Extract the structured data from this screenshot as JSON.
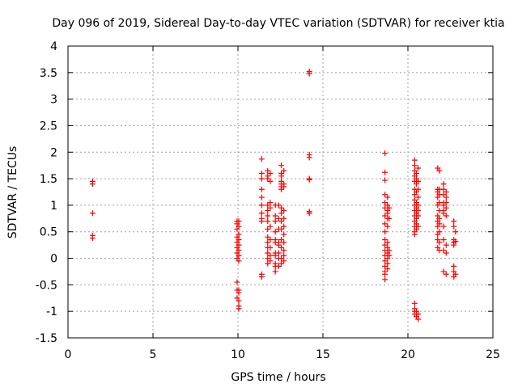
{
  "chart_data": {
    "type": "scatter",
    "title": "Day 096 of 2019, Sidereal Day-to-day VTEC variation (SDTVAR) for receiver ktia",
    "xlabel": "GPS time / hours",
    "ylabel": "SDTVAR / TECUs",
    "xlim": [
      0,
      25
    ],
    "ylim": [
      -1.5,
      4
    ],
    "xticks": [
      0,
      5,
      10,
      15,
      20,
      25
    ],
    "yticks": [
      -1.5,
      -1,
      -0.5,
      0,
      0.5,
      1,
      1.5,
      2,
      2.5,
      3,
      3.5,
      4
    ],
    "xtick_labels": [
      "0",
      "5",
      "10",
      "15",
      "20",
      "25"
    ],
    "ytick_labels": [
      "-1.5",
      "-1",
      "-0.5",
      "0",
      "0.5",
      "1",
      "1.5",
      "2",
      "2.5",
      "3",
      "3.5",
      "4"
    ],
    "grid": true,
    "marker": "+",
    "color": "#ff0000",
    "series": [
      {
        "name": "SDTVAR",
        "points": [
          [
            1.45,
            1.45
          ],
          [
            1.45,
            1.4
          ],
          [
            1.45,
            0.85
          ],
          [
            1.45,
            0.43
          ],
          [
            1.45,
            0.38
          ],
          [
            9.95,
            0.7
          ],
          [
            9.95,
            0.65
          ],
          [
            9.95,
            0.55
          ],
          [
            9.95,
            0.4
          ],
          [
            9.95,
            0.3
          ],
          [
            9.95,
            0.2
          ],
          [
            9.95,
            0.1
          ],
          [
            9.95,
            0.0
          ],
          [
            9.95,
            -0.45
          ],
          [
            9.95,
            -0.6
          ],
          [
            9.95,
            -0.75
          ],
          [
            10.05,
            0.7
          ],
          [
            10.05,
            0.6
          ],
          [
            10.05,
            0.45
          ],
          [
            10.05,
            0.35
          ],
          [
            10.05,
            0.25
          ],
          [
            10.05,
            0.15
          ],
          [
            10.05,
            0.05
          ],
          [
            10.05,
            -0.05
          ],
          [
            10.05,
            -0.6
          ],
          [
            10.05,
            -0.65
          ],
          [
            10.05,
            -0.8
          ],
          [
            10.05,
            -0.9
          ],
          [
            10.05,
            -0.95
          ],
          [
            11.4,
            1.87
          ],
          [
            11.4,
            1.6
          ],
          [
            11.4,
            1.5
          ],
          [
            11.4,
            1.3
          ],
          [
            11.4,
            1.15
          ],
          [
            11.4,
            1.0
          ],
          [
            11.4,
            0.85
          ],
          [
            11.4,
            0.75
          ],
          [
            11.4,
            0.7
          ],
          [
            11.4,
            -0.3
          ],
          [
            11.4,
            -0.35
          ],
          [
            11.75,
            1.65
          ],
          [
            11.75,
            1.55
          ],
          [
            11.75,
            1.5
          ],
          [
            11.75,
            1.0
          ],
          [
            11.75,
            0.9
          ],
          [
            11.75,
            0.8
          ],
          [
            11.75,
            0.7
          ],
          [
            11.75,
            0.55
          ],
          [
            11.75,
            0.4
          ],
          [
            11.75,
            0.3
          ],
          [
            11.75,
            0.2
          ],
          [
            11.75,
            0.1
          ],
          [
            11.75,
            0.0
          ],
          [
            11.75,
            -0.1
          ],
          [
            11.9,
            1.6
          ],
          [
            11.9,
            1.45
          ],
          [
            11.9,
            1.05
          ],
          [
            11.9,
            0.95
          ],
          [
            11.9,
            0.6
          ],
          [
            11.9,
            0.35
          ],
          [
            11.9,
            0.2
          ],
          [
            11.9,
            0.05
          ],
          [
            11.9,
            -0.05
          ],
          [
            12.2,
            1.0
          ],
          [
            12.2,
            0.8
          ],
          [
            12.2,
            0.7
          ],
          [
            12.2,
            0.5
          ],
          [
            12.2,
            0.35
          ],
          [
            12.2,
            0.3
          ],
          [
            12.2,
            0.1
          ],
          [
            12.2,
            0.05
          ],
          [
            12.2,
            -0.1
          ],
          [
            12.2,
            -0.15
          ],
          [
            12.2,
            -0.25
          ],
          [
            12.4,
            1.0
          ],
          [
            12.4,
            0.75
          ],
          [
            12.4,
            0.55
          ],
          [
            12.4,
            0.3
          ],
          [
            12.4,
            0.25
          ],
          [
            12.4,
            0.1
          ],
          [
            12.4,
            0.0
          ],
          [
            12.4,
            -0.15
          ],
          [
            12.55,
            1.75
          ],
          [
            12.55,
            1.6
          ],
          [
            12.55,
            1.55
          ],
          [
            12.55,
            1.45
          ],
          [
            12.55,
            1.4
          ],
          [
            12.55,
            1.35
          ],
          [
            12.55,
            1.3
          ],
          [
            12.55,
            0.95
          ],
          [
            12.55,
            0.85
          ],
          [
            12.55,
            0.7
          ],
          [
            12.55,
            0.55
          ],
          [
            12.55,
            0.35
          ],
          [
            12.55,
            0.2
          ],
          [
            12.55,
            0.0
          ],
          [
            12.55,
            -0.1
          ],
          [
            12.7,
            1.65
          ],
          [
            12.7,
            1.4
          ],
          [
            12.7,
            1.35
          ],
          [
            12.7,
            0.9
          ],
          [
            12.7,
            0.75
          ],
          [
            12.7,
            0.6
          ],
          [
            12.7,
            0.45
          ],
          [
            12.7,
            0.3
          ],
          [
            12.7,
            0.15
          ],
          [
            12.7,
            0.05
          ],
          [
            12.7,
            -0.05
          ],
          [
            14.2,
            3.52
          ],
          [
            14.2,
            3.48
          ],
          [
            14.2,
            1.95
          ],
          [
            14.2,
            1.9
          ],
          [
            14.2,
            1.5
          ],
          [
            14.2,
            1.48
          ],
          [
            14.2,
            0.88
          ],
          [
            14.2,
            0.85
          ],
          [
            18.65,
            1.98
          ],
          [
            18.65,
            1.62
          ],
          [
            18.65,
            1.47
          ],
          [
            18.65,
            1.2
          ],
          [
            18.65,
            1.05
          ],
          [
            18.65,
            0.95
          ],
          [
            18.65,
            0.8
          ],
          [
            18.65,
            0.65
          ],
          [
            18.65,
            0.5
          ],
          [
            18.65,
            0.35
          ],
          [
            18.65,
            0.25
          ],
          [
            18.65,
            0.15
          ],
          [
            18.65,
            0.05
          ],
          [
            18.65,
            -0.05
          ],
          [
            18.65,
            -0.15
          ],
          [
            18.65,
            -0.25
          ],
          [
            18.65,
            -0.3
          ],
          [
            18.65,
            -0.4
          ],
          [
            18.8,
            1.15
          ],
          [
            18.8,
            1.0
          ],
          [
            18.8,
            0.9
          ],
          [
            18.8,
            0.85
          ],
          [
            18.8,
            0.75
          ],
          [
            18.8,
            0.6
          ],
          [
            18.8,
            0.3
          ],
          [
            18.8,
            0.2
          ],
          [
            18.8,
            0.1
          ],
          [
            18.8,
            0.0
          ],
          [
            18.8,
            -0.1
          ],
          [
            18.8,
            -0.2
          ],
          [
            18.9,
            0.95
          ],
          [
            18.9,
            0.75
          ],
          [
            18.9,
            0.15
          ],
          [
            18.9,
            0.05
          ],
          [
            20.4,
            1.85
          ],
          [
            20.4,
            1.75
          ],
          [
            20.4,
            1.65
          ],
          [
            20.4,
            1.55
          ],
          [
            20.4,
            1.45
          ],
          [
            20.4,
            1.3
          ],
          [
            20.4,
            1.2
          ],
          [
            20.4,
            1.1
          ],
          [
            20.4,
            1.0
          ],
          [
            20.4,
            0.9
          ],
          [
            20.4,
            0.8
          ],
          [
            20.4,
            0.7
          ],
          [
            20.4,
            0.6
          ],
          [
            20.4,
            0.5
          ],
          [
            20.4,
            0.45
          ],
          [
            20.4,
            -0.85
          ],
          [
            20.4,
            -0.95
          ],
          [
            20.4,
            -1.0
          ],
          [
            20.4,
            -1.05
          ],
          [
            20.5,
            1.6
          ],
          [
            20.5,
            1.5
          ],
          [
            20.5,
            1.4
          ],
          [
            20.5,
            1.25
          ],
          [
            20.5,
            1.05
          ],
          [
            20.5,
            0.95
          ],
          [
            20.5,
            0.85
          ],
          [
            20.5,
            0.75
          ],
          [
            20.5,
            0.65
          ],
          [
            20.5,
            0.55
          ],
          [
            20.5,
            -1.0
          ],
          [
            20.5,
            -1.1
          ],
          [
            20.6,
            1.7
          ],
          [
            20.6,
            1.45
          ],
          [
            20.6,
            1.3
          ],
          [
            20.6,
            1.15
          ],
          [
            20.6,
            1.0
          ],
          [
            20.6,
            0.9
          ],
          [
            20.6,
            0.8
          ],
          [
            20.6,
            0.6
          ],
          [
            20.6,
            -1.05
          ],
          [
            20.6,
            -1.15
          ],
          [
            21.75,
            1.7
          ],
          [
            21.75,
            1.3
          ],
          [
            21.75,
            1.25
          ],
          [
            21.75,
            1.15
          ],
          [
            21.75,
            1.0
          ],
          [
            21.75,
            0.8
          ],
          [
            21.75,
            0.7
          ],
          [
            21.75,
            0.6
          ],
          [
            21.75,
            0.45
          ],
          [
            21.75,
            0.35
          ],
          [
            21.75,
            0.2
          ],
          [
            21.85,
            1.65
          ],
          [
            21.85,
            1.3
          ],
          [
            21.85,
            1.2
          ],
          [
            21.85,
            1.05
          ],
          [
            21.85,
            0.9
          ],
          [
            21.85,
            0.75
          ],
          [
            21.85,
            0.65
          ],
          [
            21.85,
            0.5
          ],
          [
            21.85,
            0.3
          ],
          [
            21.85,
            0.15
          ],
          [
            22.1,
            1.4
          ],
          [
            22.1,
            1.3
          ],
          [
            22.1,
            1.2
          ],
          [
            22.1,
            1.05
          ],
          [
            22.1,
            1.0
          ],
          [
            22.1,
            0.9
          ],
          [
            22.1,
            0.85
          ],
          [
            22.1,
            0.6
          ],
          [
            22.1,
            0.35
          ],
          [
            22.1,
            0.15
          ],
          [
            22.1,
            -0.25
          ],
          [
            22.25,
            1.25
          ],
          [
            22.25,
            1.15
          ],
          [
            22.25,
            1.05
          ],
          [
            22.25,
            0.95
          ],
          [
            22.25,
            0.8
          ],
          [
            22.25,
            0.25
          ],
          [
            22.25,
            0.1
          ],
          [
            22.25,
            -0.3
          ],
          [
            22.7,
            0.7
          ],
          [
            22.7,
            0.6
          ],
          [
            22.7,
            0.35
          ],
          [
            22.7,
            0.3
          ],
          [
            22.7,
            0.25
          ],
          [
            22.7,
            -0.15
          ],
          [
            22.7,
            -0.25
          ],
          [
            22.7,
            -0.35
          ],
          [
            22.8,
            0.5
          ],
          [
            22.8,
            0.32
          ],
          [
            22.8,
            -0.3
          ]
        ]
      }
    ]
  }
}
